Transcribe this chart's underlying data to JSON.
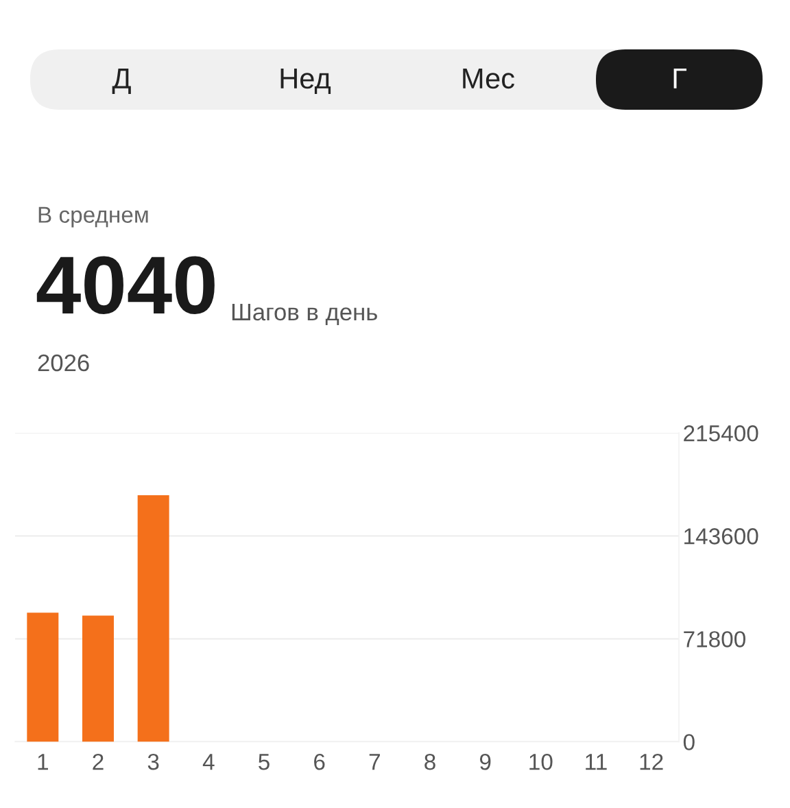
{
  "chart_data": {
    "type": "bar",
    "title": "4040",
    "annotations": [
      "Д",
      "Нед",
      "Мес",
      "Г",
      "В среднем",
      "Шагов в день",
      "2026"
    ],
    "categories": [
      "1",
      "2",
      "3",
      "4",
      "5",
      "6",
      "7",
      "8",
      "9",
      "10",
      "11",
      "12"
    ],
    "values": [
      90000,
      88000,
      172000,
      null,
      null,
      null,
      null,
      null,
      null,
      null,
      null,
      null
    ],
    "color": "#f4701b",
    "ylim": [
      0,
      215400
    ],
    "yticks": [
      0,
      71800,
      143600,
      215400
    ],
    "grid": "y"
  }
}
